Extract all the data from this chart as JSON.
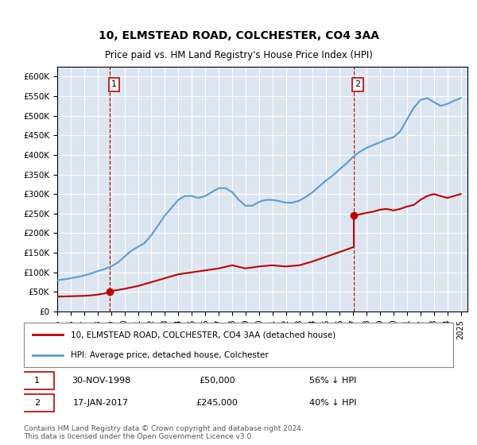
{
  "title": "10, ELMSTEAD ROAD, COLCHESTER, CO4 3AA",
  "subtitle": "Price paid vs. HM Land Registry's House Price Index (HPI)",
  "legend_line1": "10, ELMSTEAD ROAD, COLCHESTER, CO4 3AA (detached house)",
  "legend_line2": "HPI: Average price, detached house, Colchester",
  "note": "Contains HM Land Registry data © Crown copyright and database right 2024.\nThis data is licensed under the Open Government Licence v3.0.",
  "sale1_date": "30-NOV-1998",
  "sale1_price": 50000,
  "sale1_label": "1",
  "sale1_pct": "56% ↓ HPI",
  "sale2_date": "17-JAN-2017",
  "sale2_price": 245000,
  "sale2_label": "2",
  "sale2_pct": "40% ↓ HPI",
  "hpi_color": "#5b9bd5",
  "price_color": "#c00000",
  "sale_marker_color": "#c00000",
  "vline_color": "#c00000",
  "background_color": "#dce6f1",
  "plot_bg_color": "#dce6f1",
  "ylim": [
    0,
    625000
  ],
  "yticks": [
    0,
    50000,
    100000,
    150000,
    200000,
    250000,
    300000,
    350000,
    400000,
    450000,
    500000,
    550000,
    600000
  ],
  "xlim_start": 1995.0,
  "xlim_end": 2025.5
}
